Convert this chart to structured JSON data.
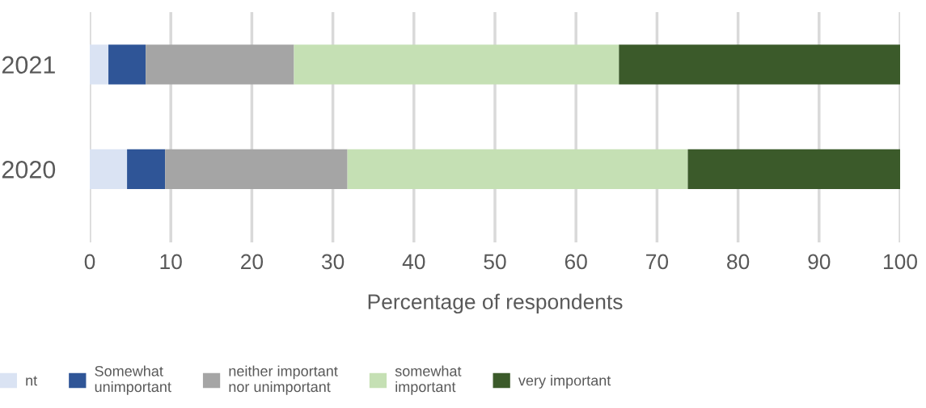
{
  "chart_data": {
    "type": "bar",
    "orientation": "horizontal",
    "stacked": true,
    "xlabel": "Percentage of respondents",
    "categories": [
      "2021",
      "2020"
    ],
    "series": [
      {
        "name": "nt",
        "color": "#dae3f3",
        "values": [
          2.3,
          4.6
        ]
      },
      {
        "name": "Somewhat\nunimportant",
        "color": "#2f5597",
        "values": [
          4.6,
          4.7
        ]
      },
      {
        "name": "neither important\nnor unimportant",
        "color": "#a5a5a5",
        "values": [
          18.3,
          22.5
        ]
      },
      {
        "name": "somewhat\nimportant",
        "color": "#c5e0b4",
        "values": [
          40.1,
          42.0
        ]
      },
      {
        "name": "very important",
        "color": "#3b5a2a",
        "values": [
          34.7,
          26.2
        ]
      }
    ],
    "xlim": [
      0,
      100
    ],
    "xticks": [
      0,
      10,
      20,
      30,
      40,
      50,
      60,
      70,
      80,
      90,
      100
    ],
    "grid": "x",
    "legend": "bottom"
  }
}
